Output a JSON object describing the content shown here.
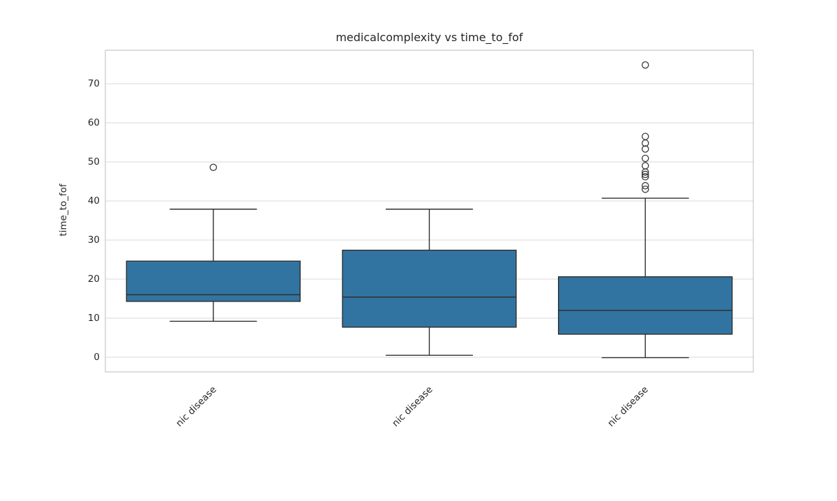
{
  "figure": {
    "background": "#ffffff",
    "colors": {
      "box_fill": "#3274a1",
      "box_edge": "#2f2f2f",
      "whisker": "#2f2f2f",
      "median": "#2f2f2f",
      "outlier_stroke": "#3a3a3a",
      "grid": "#d9d9d9",
      "spine": "#c9c9c9",
      "text": "#262626"
    }
  },
  "chart_data": {
    "type": "boxplot",
    "title": "medicalcomplexity vs time_to_fof",
    "xlabel": "",
    "ylabel": "time_to_fof",
    "yticks": [
      0,
      10,
      20,
      30,
      40,
      50,
      60,
      70
    ],
    "ylim": [
      -3.75,
      78.57
    ],
    "grid": true,
    "legend": false,
    "categories": [
      "nic disease",
      "nic disease",
      "nic disease"
    ],
    "boxes": [
      {
        "category": "nic disease",
        "whisker_low": 9.2,
        "q1": 14.3,
        "median": 16.0,
        "q3": 24.6,
        "whisker_high": 37.9,
        "outliers": [
          48.6
        ]
      },
      {
        "category": "nic disease",
        "whisker_low": 0.5,
        "q1": 7.7,
        "median": 15.4,
        "q3": 27.4,
        "whisker_high": 37.9,
        "outliers": []
      },
      {
        "category": "nic disease",
        "whisker_low": -0.1,
        "q1": 5.9,
        "median": 12.0,
        "q3": 20.6,
        "whisker_high": 40.7,
        "outliers": [
          74.8,
          56.5,
          54.8,
          53.3,
          50.9,
          49.0,
          47.4,
          46.8,
          46.2,
          43.9,
          43.0
        ]
      }
    ]
  }
}
